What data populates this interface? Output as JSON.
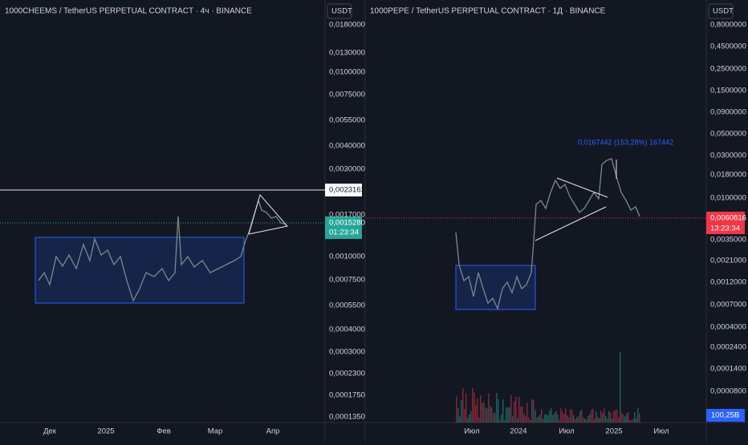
{
  "left": {
    "title": "1000CHEEMS / TetherUS PERPETUAL CONTRACT · 4ч · BINANCE",
    "currency": "USDT",
    "price_axis": [
      "0,0180000",
      "0,0130000",
      "0,0100000",
      "0,0075000",
      "0,0055000",
      "0,0040000",
      "0,0030000",
      "0,0017000",
      "0,0010000",
      "0,0007500",
      "0,0005500",
      "0,0004000",
      "0,0003000",
      "0,0002300",
      "0,0001750",
      "0,0001350"
    ],
    "line_badge": "0,0023162",
    "price_badge": "0,0015280",
    "timer": "01:23:34",
    "time_axis": [
      "Дек",
      "2025",
      "Фев",
      "Мар",
      "Апр"
    ]
  },
  "right": {
    "title": "1000PEPE / TetherUS PERPETUAL CONTRACT · 1Д · BINANCE",
    "currency": "USDT",
    "price_axis": [
      "0,8000000",
      "0,4500000",
      "0,2500000",
      "0,1500000",
      "0,0900000",
      "0,0500000",
      "0,0300000",
      "0,0180000",
      "0,0100000",
      "0,0035000",
      "0,0021000",
      "0,0012000",
      "0,0007000",
      "0,0004000",
      "0,0002400",
      "0,0001400",
      "0,0000800"
    ],
    "price_badge": "0,0060816",
    "timer": "13:23:34",
    "volume_badge": "100,25B",
    "annotation": "0,0167442 (153,28%) 167442",
    "time_axis": [
      "Июл",
      "2024",
      "Июл",
      "2025",
      "Июл"
    ]
  }
}
